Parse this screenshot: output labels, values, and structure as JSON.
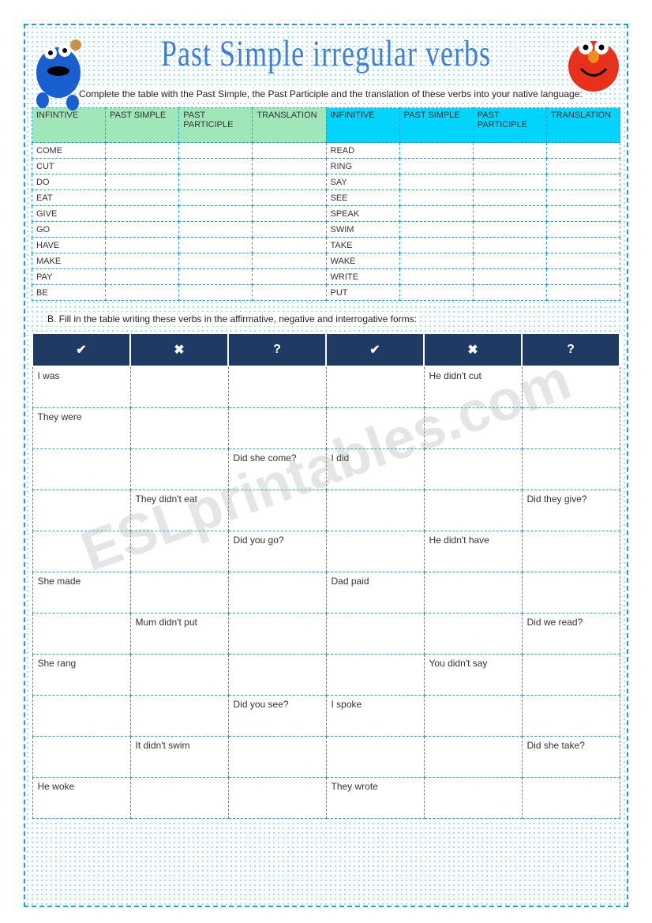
{
  "title": "Past Simple irregular verbs",
  "instructionA": "Complete the table with the Past Simple, the Past Participle and the translation of these verbs into your native language:",
  "instructionB": "B.   Fill in the table writing these verbs in the affirmative, negative and interrogative forms:",
  "watermark": "ESLprintables.com",
  "tableA": {
    "headers_left": [
      "INFINTIVE",
      "PAST SIMPLE",
      "PAST PARTICIPLE",
      "TRANSLATION"
    ],
    "headers_right": [
      "INFINITIVE",
      "PAST SIMPLE",
      "PAST PARTICIPLE",
      "TRANSLATION"
    ],
    "header_color_left": "#9fe6b8",
    "header_color_right": "#00d4ff",
    "rows": [
      {
        "l": "COME",
        "r": "READ"
      },
      {
        "l": "CUT",
        "r": "RING"
      },
      {
        "l": "DO",
        "r": "SAY"
      },
      {
        "l": "EAT",
        "r": "SEE"
      },
      {
        "l": "GIVE",
        "r": "SPEAK"
      },
      {
        "l": "GO",
        "r": "SWIM"
      },
      {
        "l": "HAVE",
        "r": "TAKE"
      },
      {
        "l": "MAKE",
        "r": "WAKE"
      },
      {
        "l": "PAY",
        "r": "WRITE"
      },
      {
        "l": "BE",
        "r": "PUT"
      }
    ]
  },
  "tableB": {
    "headers": [
      "✔",
      "✖",
      "?",
      "✔",
      "✖",
      "?"
    ],
    "header_bg": "#1f3a63",
    "rows": [
      [
        "I was",
        "",
        "",
        "",
        "He didn't cut",
        ""
      ],
      [
        "They were",
        "",
        "",
        "",
        "",
        ""
      ],
      [
        "",
        "",
        "Did she come?",
        "I did",
        "",
        ""
      ],
      [
        "",
        "They didn't eat",
        "",
        "",
        "",
        "Did they give?"
      ],
      [
        "",
        "",
        "Did you go?",
        "",
        "He didn't have",
        ""
      ],
      [
        "She made",
        "",
        "",
        "Dad paid",
        "",
        ""
      ],
      [
        "",
        "Mum didn't put",
        "",
        "",
        "",
        "Did we read?"
      ],
      [
        "She rang",
        "",
        "",
        "",
        "You didn't say",
        ""
      ],
      [
        "",
        "",
        "Did you see?",
        "I spoke",
        "",
        ""
      ],
      [
        "",
        "It didn't swim",
        "",
        "",
        "",
        "Did she take?"
      ],
      [
        "He woke",
        "",
        "",
        "They wrote",
        "",
        ""
      ]
    ]
  }
}
